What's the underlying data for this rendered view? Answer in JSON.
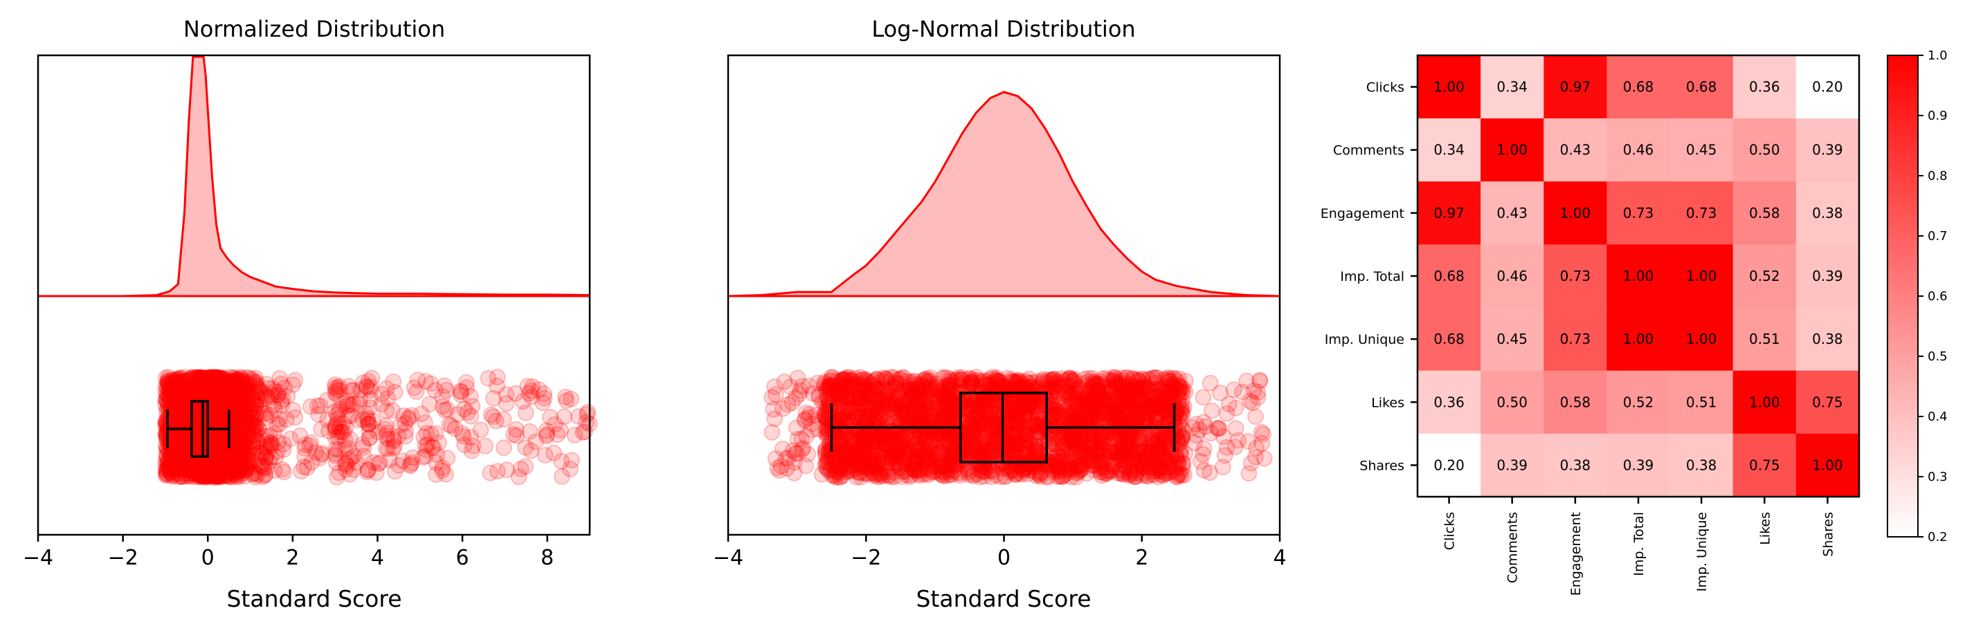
{
  "colors": {
    "accent": "#ff0000",
    "kde_fill": "#ffbcbc",
    "point": "#ff0000",
    "box": "#000000"
  },
  "chart_data": [
    {
      "type": "raincloud",
      "title": "Normalized Distribution",
      "xlabel": "Standard Score",
      "xlim": [
        -4,
        9
      ],
      "xticks": [
        -4,
        -2,
        0,
        2,
        4,
        6,
        8
      ],
      "xtick_labels": [
        "−4",
        "−2",
        "0",
        "2",
        "4",
        "6",
        "8"
      ],
      "kde": {
        "x": [
          -4,
          -2,
          -1.2,
          -0.9,
          -0.7,
          -0.55,
          -0.45,
          -0.35,
          -0.28,
          -0.2,
          -0.15,
          -0.1,
          -0.05,
          0,
          0.1,
          0.2,
          0.3,
          0.45,
          0.6,
          0.8,
          1.0,
          1.3,
          1.6,
          2.0,
          2.5,
          3.0,
          3.5,
          4.0,
          5.0,
          6.0,
          7.0,
          8.0,
          9.0
        ],
        "density": [
          0.0,
          0.0,
          0.004,
          0.02,
          0.05,
          0.35,
          0.72,
          1.0,
          1.0,
          1.0,
          1.0,
          1.0,
          0.92,
          0.78,
          0.5,
          0.3,
          0.2,
          0.16,
          0.13,
          0.1,
          0.08,
          0.06,
          0.04,
          0.03,
          0.02,
          0.015,
          0.012,
          0.01,
          0.01,
          0.008,
          0.006,
          0.006,
          0.004
        ]
      },
      "box": {
        "whisker_low": -0.95,
        "q1": -0.38,
        "median": -0.12,
        "q3": 0.0,
        "whisker_high": 0.5
      },
      "points": {
        "count": 3000,
        "core_range": [
          -1.0,
          3.0
        ],
        "tail_range": [
          3.0,
          9.0
        ]
      }
    },
    {
      "type": "raincloud",
      "title": "Log-Normal Distribution",
      "xlabel": "Standard Score",
      "xlim": [
        -4,
        4
      ],
      "xticks": [
        -4,
        -2,
        0,
        2,
        4
      ],
      "xtick_labels": [
        "−4",
        "−2",
        "0",
        "2",
        "4"
      ],
      "kde": {
        "x": [
          -4.0,
          -3.5,
          -3.0,
          -2.8,
          -2.5,
          -2.2,
          -2.0,
          -1.8,
          -1.6,
          -1.4,
          -1.2,
          -1.0,
          -0.8,
          -0.6,
          -0.4,
          -0.2,
          0.0,
          0.2,
          0.4,
          0.6,
          0.8,
          1.0,
          1.2,
          1.4,
          1.6,
          1.8,
          2.0,
          2.2,
          2.5,
          3.0,
          3.5,
          4.0
        ],
        "density": [
          0.0,
          0.005,
          0.02,
          0.02,
          0.02,
          0.1,
          0.15,
          0.22,
          0.3,
          0.38,
          0.46,
          0.56,
          0.68,
          0.8,
          0.9,
          0.97,
          1.0,
          0.98,
          0.92,
          0.82,
          0.7,
          0.56,
          0.44,
          0.33,
          0.25,
          0.18,
          0.12,
          0.08,
          0.05,
          0.02,
          0.005,
          0.0
        ]
      },
      "box": {
        "whisker_low": -2.5,
        "q1": -0.63,
        "median": -0.02,
        "q3": 0.62,
        "whisker_high": 2.47
      },
      "points": {
        "count": 3000,
        "core_range": [
          -2.6,
          2.6
        ],
        "tail_range": [
          -4.0,
          3.8
        ]
      }
    },
    {
      "type": "heatmap",
      "labels": [
        "Clicks",
        "Comments",
        "Engagement",
        "Imp. Total",
        "Imp. Unique",
        "Likes",
        "Shares"
      ],
      "values": [
        [
          1.0,
          0.34,
          0.97,
          0.68,
          0.68,
          0.36,
          0.2
        ],
        [
          0.34,
          1.0,
          0.43,
          0.46,
          0.45,
          0.5,
          0.39
        ],
        [
          0.97,
          0.43,
          1.0,
          0.73,
          0.73,
          0.58,
          0.38
        ],
        [
          0.68,
          0.46,
          0.73,
          1.0,
          1.0,
          0.52,
          0.39
        ],
        [
          0.68,
          0.45,
          0.73,
          1.0,
          1.0,
          0.51,
          0.38
        ],
        [
          0.36,
          0.5,
          0.58,
          0.52,
          0.51,
          1.0,
          0.75
        ],
        [
          0.2,
          0.39,
          0.38,
          0.39,
          0.38,
          0.75,
          1.0
        ]
      ],
      "value_labels": [
        [
          "1.00",
          "0.34",
          "0.97",
          "0.68",
          "0.68",
          "0.36",
          "0.20"
        ],
        [
          "0.34",
          "1.00",
          "0.43",
          "0.46",
          "0.45",
          "0.50",
          "0.39"
        ],
        [
          "0.97",
          "0.43",
          "1.00",
          "0.73",
          "0.73",
          "0.58",
          "0.38"
        ],
        [
          "0.68",
          "0.46",
          "0.73",
          "1.00",
          "1.00",
          "0.52",
          "0.39"
        ],
        [
          "0.68",
          "0.45",
          "0.73",
          "1.00",
          "1.00",
          "0.51",
          "0.38"
        ],
        [
          "0.36",
          "0.50",
          "0.58",
          "0.52",
          "0.51",
          "1.00",
          "0.75"
        ],
        [
          "0.20",
          "0.39",
          "0.38",
          "0.39",
          "0.38",
          "0.75",
          "1.00"
        ]
      ],
      "colorbar": {
        "range": [
          0.2,
          1.0
        ],
        "ticks": [
          0.2,
          0.3,
          0.4,
          0.5,
          0.6,
          0.7,
          0.8,
          0.9,
          1.0
        ],
        "tick_labels": [
          "0.2",
          "0.3",
          "0.4",
          "0.5",
          "0.6",
          "0.7",
          "0.8",
          "0.9",
          "1.0"
        ],
        "color_low": "#ffffff",
        "color_high": "#ff0000"
      }
    }
  ]
}
